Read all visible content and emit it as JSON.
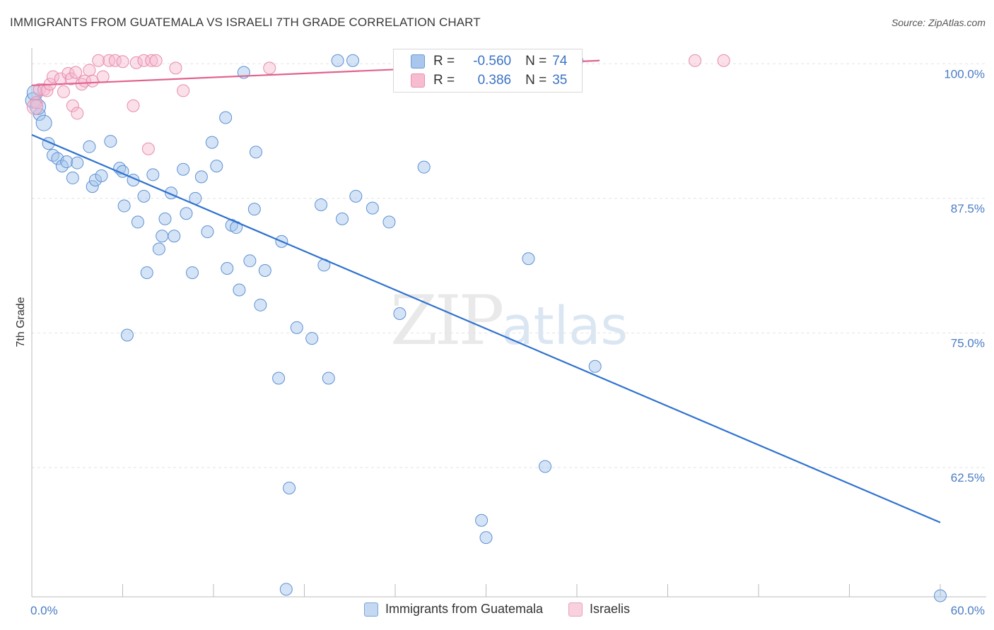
{
  "title": "IMMIGRANTS FROM GUATEMALA VS ISRAELI 7TH GRADE CORRELATION CHART",
  "source": "Source: ZipAtlas.com",
  "watermark": {
    "zip": "ZIP",
    "atlas": "atlas"
  },
  "legend": {
    "r_label": "R =",
    "n_label": "N =",
    "rows": [
      {
        "r": "-0.560",
        "n": "74",
        "color": "#a9c6ec",
        "border": "#6c9bd6"
      },
      {
        "r": "0.386",
        "n": "35",
        "color": "#f7bcd0",
        "border": "#e891b0"
      }
    ]
  },
  "bottom_legend": [
    {
      "label": "Immigrants from Guatemala",
      "color": "#c4d8f2",
      "border": "#7aa3d9"
    },
    {
      "label": "Israelis",
      "color": "#f9d0de",
      "border": "#e9a2bd"
    }
  ],
  "colors": {
    "blue_fill": "rgba(160,195,236,0.45)",
    "blue_stroke": "#5e90d3",
    "blue_line": "#2f72d0",
    "pink_fill": "rgba(246,185,206,0.45)",
    "pink_stroke": "#e68cae",
    "pink_line": "#e0638f",
    "grid": "#e3e3e3",
    "tick": "#4a7cc4"
  },
  "chart_data": {
    "type": "scatter",
    "title": "IMMIGRANTS FROM GUATEMALA VS ISRAELI 7TH GRADE CORRELATION CHART",
    "xlabel": "",
    "ylabel": "7th Grade",
    "xlim": [
      0,
      60
    ],
    "ylim": [
      50.5,
      101.2
    ],
    "x_tick_labels": [
      {
        "value": 0,
        "label": "0.0%"
      },
      {
        "value": 60,
        "label": "60.0%"
      }
    ],
    "y_tick_labels": [
      {
        "value": 100,
        "label": "100.0%"
      },
      {
        "value": 87.5,
        "label": "87.5%"
      },
      {
        "value": 75,
        "label": "75.0%"
      },
      {
        "value": 62.5,
        "label": "62.5%"
      }
    ],
    "series": [
      {
        "name": "Immigrants from Guatemala",
        "r": -0.56,
        "n": 74,
        "trend": {
          "x": [
            0,
            60
          ],
          "y": [
            93.4,
            57.4
          ]
        },
        "points": [
          [
            0.1,
            96.6
          ],
          [
            0.5,
            95.3
          ],
          [
            0.8,
            94.5
          ],
          [
            1.1,
            92.6
          ],
          [
            1.4,
            91.5
          ],
          [
            1.7,
            91.2
          ],
          [
            2.0,
            90.5
          ],
          [
            2.3,
            90.9
          ],
          [
            2.7,
            89.4
          ],
          [
            3.0,
            90.8
          ],
          [
            3.8,
            92.3
          ],
          [
            4.0,
            88.6
          ],
          [
            4.2,
            89.2
          ],
          [
            4.6,
            89.6
          ],
          [
            5.2,
            92.8
          ],
          [
            5.8,
            90.3
          ],
          [
            6.0,
            90.0
          ],
          [
            6.1,
            86.8
          ],
          [
            6.3,
            74.8
          ],
          [
            6.7,
            89.2
          ],
          [
            7.0,
            85.3
          ],
          [
            7.4,
            87.7
          ],
          [
            7.6,
            80.6
          ],
          [
            8.0,
            89.7
          ],
          [
            8.4,
            82.8
          ],
          [
            8.6,
            84.0
          ],
          [
            8.8,
            85.6
          ],
          [
            9.2,
            88.0
          ],
          [
            9.4,
            84.0
          ],
          [
            10.0,
            90.2
          ],
          [
            10.2,
            86.1
          ],
          [
            10.6,
            80.6
          ],
          [
            10.8,
            87.5
          ],
          [
            11.2,
            89.5
          ],
          [
            11.6,
            84.4
          ],
          [
            11.9,
            92.7
          ],
          [
            12.2,
            90.5
          ],
          [
            12.8,
            95.0
          ],
          [
            12.9,
            81.0
          ],
          [
            13.2,
            85.0
          ],
          [
            13.5,
            84.8
          ],
          [
            13.7,
            79.0
          ],
          [
            14.0,
            99.2
          ],
          [
            14.4,
            81.7
          ],
          [
            14.7,
            86.5
          ],
          [
            14.8,
            91.8
          ],
          [
            15.1,
            77.6
          ],
          [
            15.4,
            80.8
          ],
          [
            16.3,
            70.8
          ],
          [
            16.5,
            83.5
          ],
          [
            16.8,
            51.2
          ],
          [
            17.0,
            60.6
          ],
          [
            17.5,
            75.5
          ],
          [
            18.5,
            74.5
          ],
          [
            19.1,
            86.9
          ],
          [
            19.3,
            81.3
          ],
          [
            19.6,
            70.8
          ],
          [
            20.2,
            100.3
          ],
          [
            20.5,
            85.6
          ],
          [
            21.2,
            100.3
          ],
          [
            21.4,
            87.7
          ],
          [
            22.5,
            86.6
          ],
          [
            23.6,
            85.3
          ],
          [
            24.3,
            76.8
          ],
          [
            25.9,
            90.4
          ],
          [
            29.7,
            57.6
          ],
          [
            30.0,
            56.0
          ],
          [
            32.8,
            81.9
          ],
          [
            33.9,
            62.6
          ],
          [
            36.0,
            100.3
          ],
          [
            37.2,
            71.9
          ],
          [
            60.0,
            50.6
          ],
          [
            0.2,
            97.3
          ],
          [
            0.4,
            96.0
          ]
        ]
      },
      {
        "name": "Israelis",
        "r": 0.386,
        "n": 35,
        "trend": {
          "x": [
            0,
            37.5
          ],
          "y": [
            98.0,
            100.3
          ]
        },
        "points": [
          [
            0.3,
            96.4
          ],
          [
            0.5,
            97.6
          ],
          [
            0.8,
            97.6
          ],
          [
            1.0,
            97.5
          ],
          [
            1.2,
            98.1
          ],
          [
            1.4,
            98.8
          ],
          [
            1.9,
            98.6
          ],
          [
            2.1,
            97.4
          ],
          [
            2.4,
            99.1
          ],
          [
            2.6,
            98.6
          ],
          [
            2.7,
            96.1
          ],
          [
            2.9,
            99.2
          ],
          [
            3.0,
            95.4
          ],
          [
            3.3,
            98.1
          ],
          [
            3.5,
            98.4
          ],
          [
            3.8,
            99.4
          ],
          [
            4.0,
            98.4
          ],
          [
            4.4,
            100.3
          ],
          [
            4.7,
            98.8
          ],
          [
            5.1,
            100.3
          ],
          [
            5.5,
            100.3
          ],
          [
            6.0,
            100.2
          ],
          [
            6.7,
            96.1
          ],
          [
            6.9,
            100.1
          ],
          [
            7.4,
            100.3
          ],
          [
            7.7,
            92.1
          ],
          [
            7.9,
            100.3
          ],
          [
            8.2,
            100.3
          ],
          [
            9.5,
            99.6
          ],
          [
            10.0,
            97.5
          ],
          [
            15.7,
            99.6
          ],
          [
            35.6,
            100.3
          ],
          [
            43.8,
            100.3
          ],
          [
            45.7,
            100.3
          ],
          [
            0.2,
            96.0
          ]
        ]
      }
    ]
  }
}
